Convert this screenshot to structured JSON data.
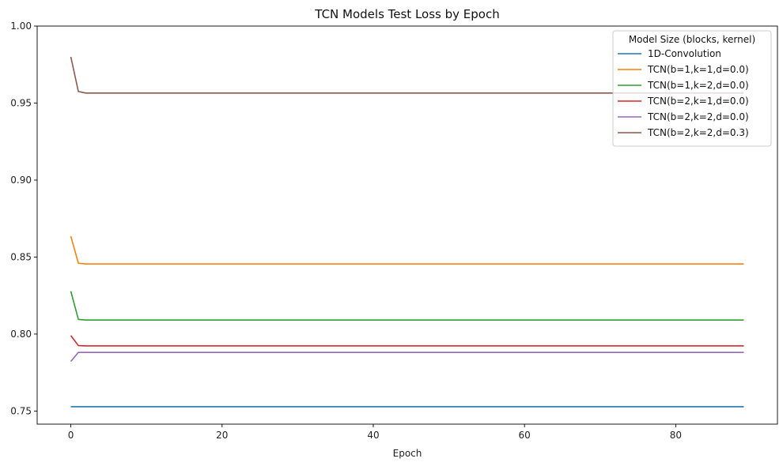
{
  "chart_data": {
    "type": "line",
    "title": "TCN Models Test Loss by Epoch",
    "xlabel": "Epoch",
    "ylabel": "",
    "xlim": [
      -4.45,
      93.45
    ],
    "ylim": [
      0.7415,
      1.0
    ],
    "xticks": [
      0,
      20,
      40,
      60,
      80
    ],
    "yticks": [
      0.75,
      0.8,
      0.85,
      0.9,
      0.95,
      1.0
    ],
    "ytick_labels": [
      "0.75",
      "0.80",
      "0.85",
      "0.90",
      "0.95",
      "1.00"
    ],
    "grid": false,
    "legend": {
      "title": "Model Size (blocks, kernel)",
      "placement": "top-right"
    },
    "epochs": 90,
    "series": [
      {
        "name": "1D-Convolution",
        "color": "#1f77b4",
        "start": [
          0.7528
        ],
        "plateau": 0.7528
      },
      {
        "name": "TCN(b=1,k=1,d=0.0)",
        "color": "#ff7f0e",
        "start": [
          0.8635,
          0.846
        ],
        "plateau": 0.8455
      },
      {
        "name": "TCN(b=1,k=2,d=0.0)",
        "color": "#2ca02c",
        "start": [
          0.8278,
          0.8095
        ],
        "plateau": 0.8091
      },
      {
        "name": "TCN(b=2,k=1,d=0.0)",
        "color": "#d62728",
        "start": [
          0.799,
          0.7925
        ],
        "plateau": 0.7923
      },
      {
        "name": "TCN(b=2,k=2,d=0.0)",
        "color": "#9467bd",
        "start": [
          0.7822,
          0.7881
        ],
        "plateau": 0.7881
      },
      {
        "name": "TCN(b=2,k=2,d=0.3)",
        "color": "#8c564b",
        "start": [
          0.98,
          0.9575
        ],
        "plateau": 0.9565
      }
    ]
  }
}
